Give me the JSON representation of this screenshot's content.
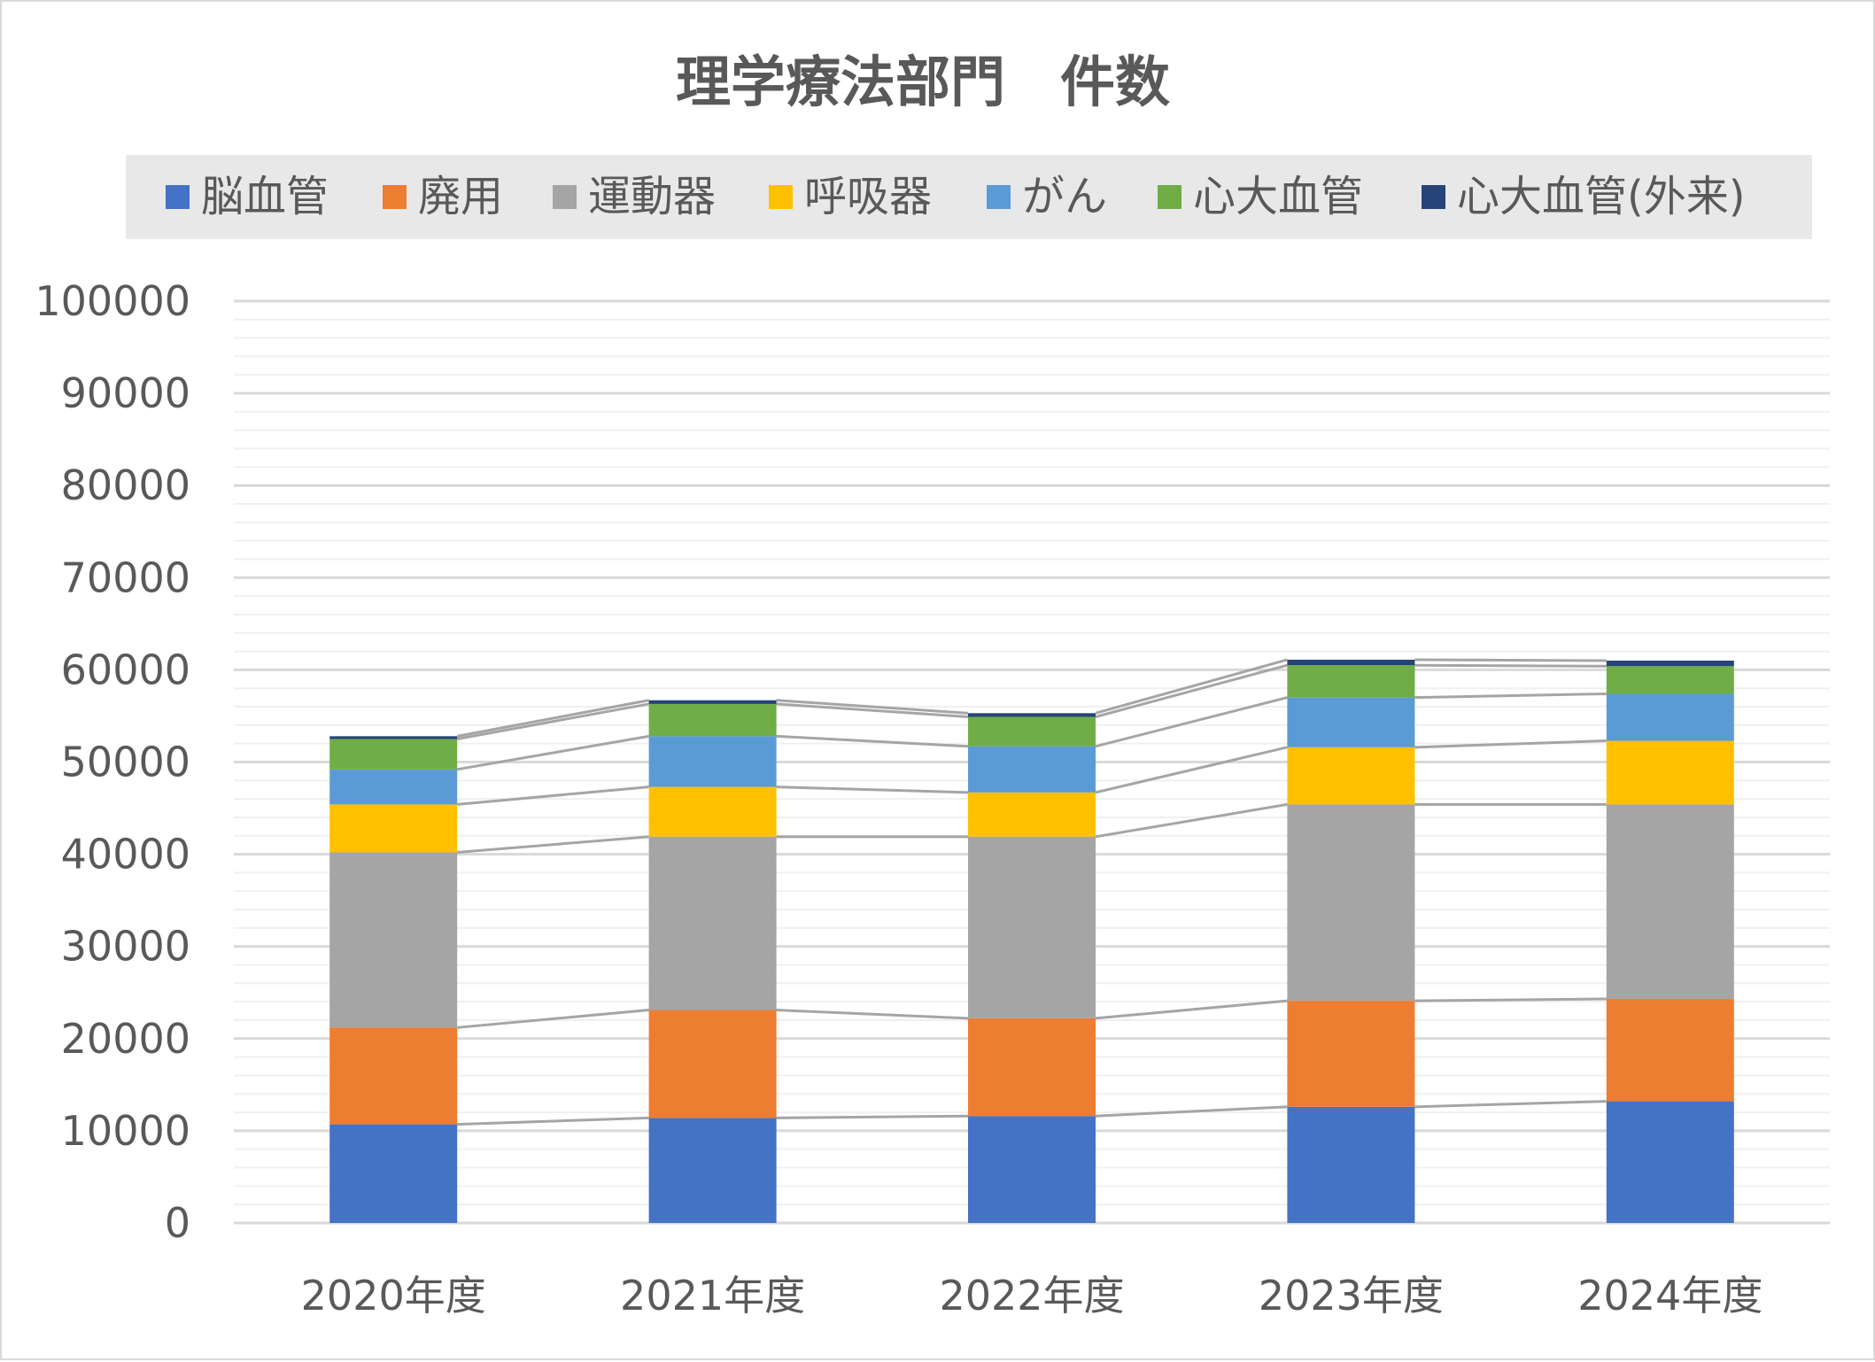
{
  "chart_data": {
    "type": "bar",
    "stacked": true,
    "title": "理学療法部門　件数",
    "categories": [
      "2020年度",
      "2021年度",
      "2022年度",
      "2023年度",
      "2024年度"
    ],
    "ylim": [
      0,
      100000
    ],
    "yticks": [
      "0",
      "10000",
      "20000",
      "30000",
      "40000",
      "50000",
      "60000",
      "70000",
      "80000",
      "90000",
      "100000"
    ],
    "grid": true,
    "series_lines": true,
    "legend_position": "top",
    "series": [
      {
        "name": "脳血管",
        "color": "#4472C4",
        "values": [
          10700,
          11400,
          11600,
          12600,
          13200
        ]
      },
      {
        "name": "廃用",
        "color": "#ED7D31",
        "values": [
          10500,
          11700,
          10600,
          11500,
          11100
        ]
      },
      {
        "name": "運動器",
        "color": "#A5A5A5",
        "values": [
          19000,
          18800,
          19700,
          21300,
          21100
        ]
      },
      {
        "name": "呼吸器",
        "color": "#FFC000",
        "values": [
          5200,
          5400,
          4800,
          6200,
          6900
        ]
      },
      {
        "name": "がん",
        "color": "#5B9BD5",
        "values": [
          3800,
          5500,
          5000,
          5400,
          5100
        ]
      },
      {
        "name": "心大血管",
        "color": "#70AD47",
        "values": [
          3300,
          3500,
          3200,
          3500,
          3000
        ]
      },
      {
        "name": "心大血管(外来)",
        "color": "#264478",
        "values": [
          300,
          400,
          400,
          600,
          600
        ]
      }
    ]
  }
}
